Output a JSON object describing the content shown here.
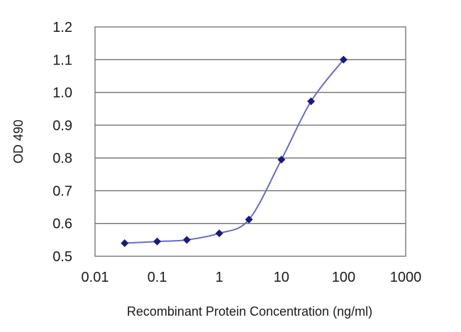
{
  "chart_data": {
    "type": "line",
    "title": "",
    "xlabel": "Recombinant Protein Concentration (ng/ml)",
    "ylabel": "OD 490",
    "x_scale": "log",
    "xlim": [
      0.01,
      1000
    ],
    "ylim": [
      0.5,
      1.2
    ],
    "x_ticks": [
      0.01,
      0.1,
      1,
      10,
      100,
      1000
    ],
    "x_tick_labels": [
      "0.01",
      "0.1",
      "1",
      "10",
      "100",
      "1000"
    ],
    "y_ticks": [
      0.5,
      0.6,
      0.7,
      0.8,
      0.9,
      1.0,
      1.1,
      1.2
    ],
    "y_tick_labels": [
      "0.5",
      "0.6",
      "0.7",
      "0.8",
      "0.9",
      "1.0",
      "1.1",
      "1.2"
    ],
    "grid": "horizontal",
    "series": [
      {
        "x": [
          0.03,
          0.1,
          0.3,
          1,
          3,
          10,
          30,
          100
        ],
        "y": [
          0.54,
          0.545,
          0.55,
          0.57,
          0.612,
          0.795,
          0.973,
          1.1
        ]
      }
    ],
    "line_color": "#6a6ac8",
    "marker_color": "#1a1a7a"
  }
}
